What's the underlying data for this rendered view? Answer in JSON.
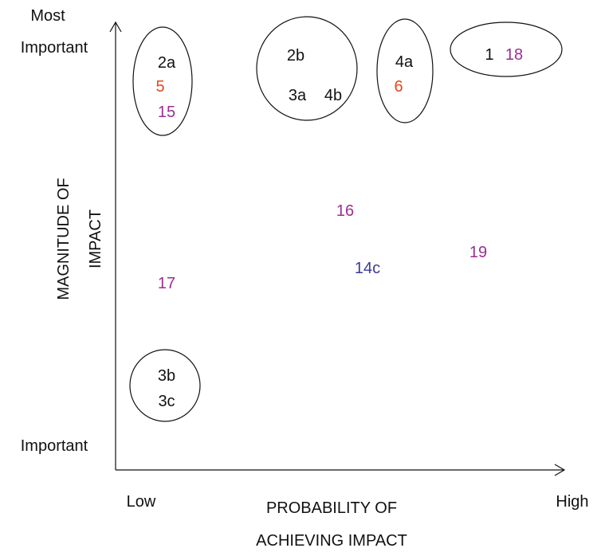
{
  "chart_data": {
    "type": "scatter",
    "x_axis": {
      "title_lines": [
        "PROBABILITY OF",
        "ACHIEVING IMPACT"
      ],
      "low_label": "Low",
      "high_label": "High"
    },
    "y_axis": {
      "title_lines": [
        "MAGNITUDE OF",
        "IMPACT"
      ],
      "top_label_lines": [
        "Most",
        "Important"
      ],
      "bottom_label": "Important"
    },
    "colors": {
      "black": "#111111",
      "orange": "#e8451f",
      "purple": "#9a2f8f",
      "blue": "#3a3a9c"
    },
    "points": [
      {
        "label": "2a",
        "color": "black"
      },
      {
        "label": "5",
        "color": "orange"
      },
      {
        "label": "15",
        "color": "purple"
      },
      {
        "label": "2b",
        "color": "black"
      },
      {
        "label": "3a",
        "color": "black"
      },
      {
        "label": "4b",
        "color": "black"
      },
      {
        "label": "4a",
        "color": "black"
      },
      {
        "label": "6",
        "color": "orange"
      },
      {
        "label": "1",
        "color": "black"
      },
      {
        "label": "18",
        "color": "purple"
      },
      {
        "label": "16",
        "color": "purple"
      },
      {
        "label": "19",
        "color": "purple"
      },
      {
        "label": "14c",
        "color": "blue"
      },
      {
        "label": "17",
        "color": "purple"
      },
      {
        "label": "3b",
        "color": "black"
      },
      {
        "label": "3c",
        "color": "black"
      }
    ],
    "groups": [
      [
        "2a",
        "5",
        "15"
      ],
      [
        "2b",
        "3a",
        "4b"
      ],
      [
        "4a",
        "6"
      ],
      [
        "1",
        "18"
      ],
      [
        "3b",
        "3c"
      ]
    ]
  }
}
